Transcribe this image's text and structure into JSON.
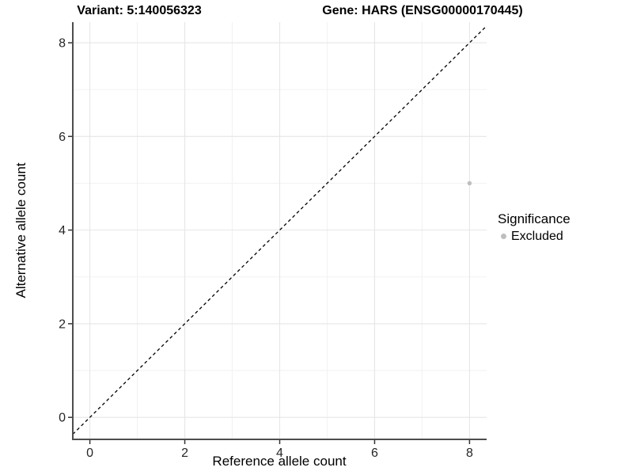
{
  "chart_data": {
    "type": "scatter",
    "title_variant": "Variant: 5:140056323",
    "title_gene": "Gene: HARS (ENSG00000170445)",
    "xlabel": "Reference allele count",
    "ylabel": "Alternative allele count",
    "xlim": [
      -0.36,
      8.36
    ],
    "ylim": [
      -0.47,
      8.44
    ],
    "x_major_ticks": [
      0,
      2,
      4,
      6,
      8
    ],
    "y_major_ticks": [
      0,
      2,
      4,
      6,
      8
    ],
    "x_minor_gridlines": [
      1,
      3,
      5,
      7
    ],
    "y_minor_gridlines": [
      1,
      3,
      5,
      7
    ],
    "grid": "major and minor, light gray on white",
    "identity_line": {
      "slope": 1,
      "intercept": 0,
      "style": "dashed",
      "color": "#000000"
    },
    "series": [
      {
        "name": "Excluded",
        "color": "#bebebe",
        "points": [
          {
            "x": 8,
            "y": 5
          }
        ]
      }
    ],
    "legend": {
      "position": "right",
      "title": "Significance",
      "entries": [
        {
          "label": "Excluded",
          "color": "#bebebe"
        }
      ]
    },
    "colors": {
      "background": "#ffffff",
      "grid_major": "#e6e6e6",
      "grid_minor": "#f2f2f2",
      "axis_line": "#4d4d4d",
      "tick_mark": "#333333",
      "tick_label": "#262626"
    }
  }
}
